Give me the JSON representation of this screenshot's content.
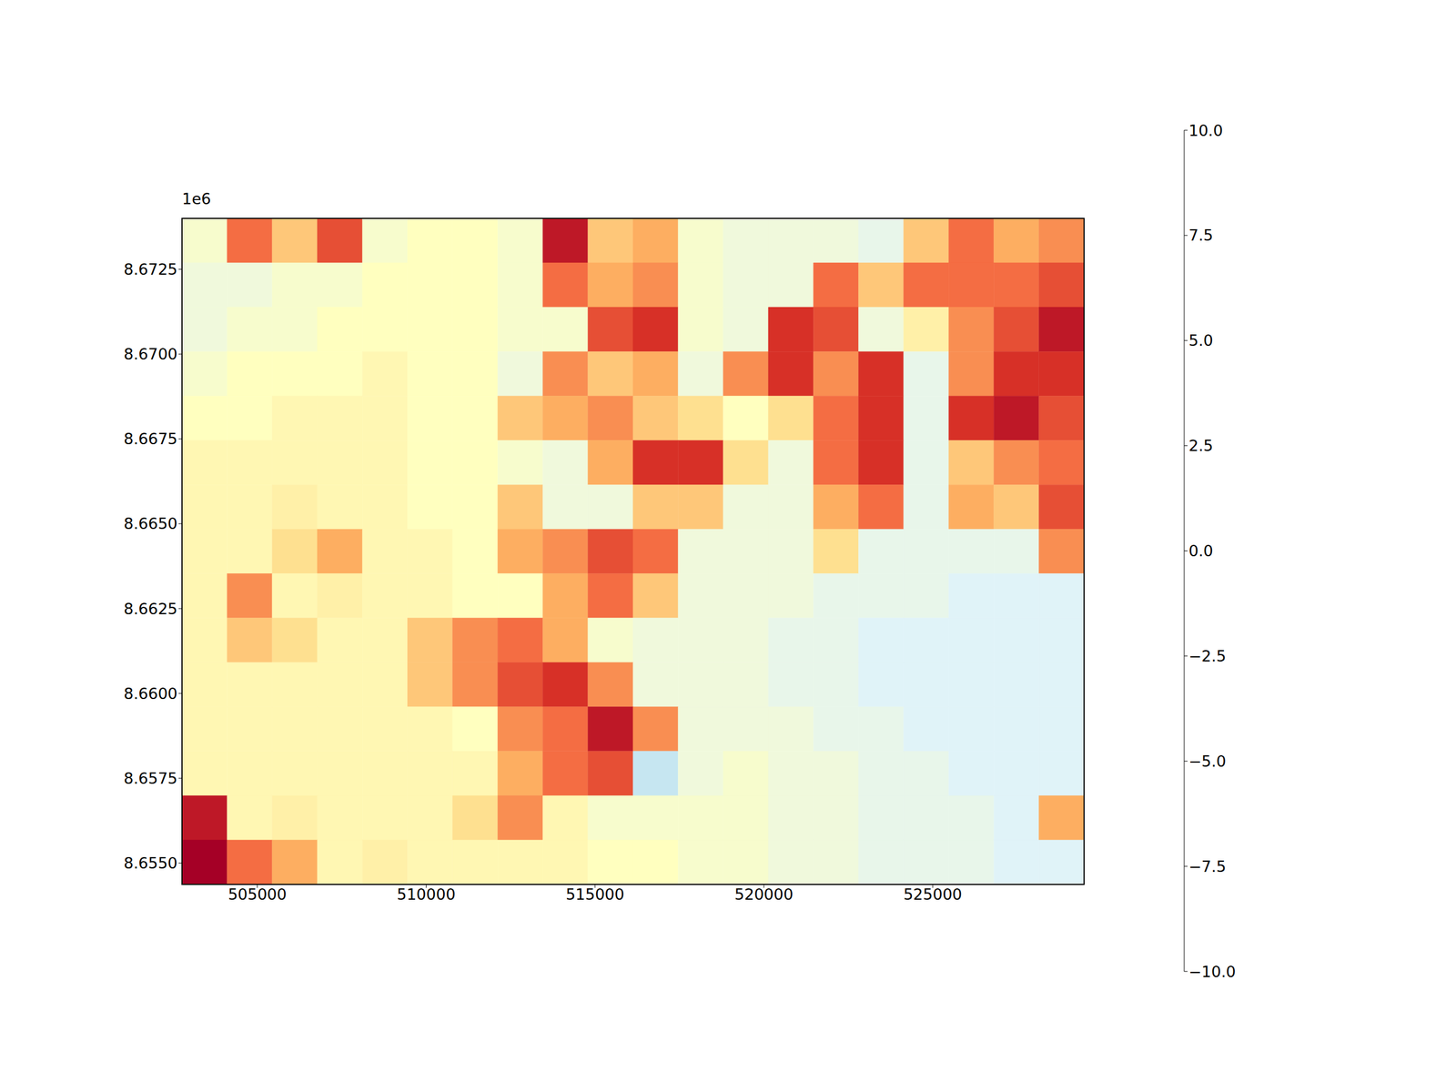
{
  "chart_data": {
    "type": "heatmap",
    "x_edges": [
      502770,
      504106,
      505441,
      506777,
      508112,
      509448,
      510783,
      512119,
      513454,
      514790,
      516125,
      517461,
      518796,
      520132,
      521467,
      522803,
      524138,
      525474,
      526809,
      528145,
      529480
    ],
    "y_edges": [
      8674000,
      8672691,
      8671383,
      8670074,
      8668765,
      8667457,
      8666148,
      8664839,
      8663531,
      8662222,
      8660913,
      8659605,
      8658296,
      8656987,
      8655679,
      8654370
    ],
    "values": [
      [
        0.5,
        -6,
        -3,
        -7,
        0.5,
        0,
        0,
        0.5,
        -9,
        -3,
        -4,
        0.5,
        1,
        1,
        1,
        1.5,
        -3,
        -6,
        -4,
        -5
      ],
      [
        1,
        1,
        0.5,
        0.5,
        0,
        0,
        0,
        0.5,
        -6,
        -4,
        -5,
        0.5,
        1,
        1,
        -6,
        -3,
        -6,
        -6,
        -6,
        -7
      ],
      [
        1,
        0.5,
        0.5,
        0,
        0,
        0,
        0,
        0.5,
        0.5,
        -7,
        -8,
        0.5,
        1,
        -8,
        -7,
        1,
        -1,
        -5,
        -7,
        -9
      ],
      [
        0.5,
        0,
        0,
        0,
        -0.5,
        0,
        0,
        1,
        -5,
        -3,
        -4,
        1,
        -5,
        -8,
        -5,
        -8,
        1.5,
        -5,
        -8,
        -8
      ],
      [
        0,
        0,
        -0.5,
        -0.5,
        -0.5,
        0,
        0,
        -3,
        -4,
        -5,
        -3,
        -2,
        0,
        -2,
        -6,
        -8,
        1.5,
        -8,
        -9,
        -7
      ],
      [
        -0.5,
        -0.5,
        -0.5,
        -0.5,
        -0.5,
        0,
        0,
        0.5,
        1,
        -4,
        -8,
        -8,
        -2,
        1,
        -6,
        -8,
        1.5,
        -3,
        -5,
        -6
      ],
      [
        -0.5,
        -0.5,
        -1,
        -0.5,
        -0.5,
        0,
        0,
        -3,
        1,
        1,
        -3,
        -3,
        1,
        1,
        -4,
        -6,
        1.5,
        -4,
        -3,
        -7
      ],
      [
        -0.5,
        -0.5,
        -2,
        -4,
        -0.5,
        -0.5,
        0,
        -4,
        -5,
        -7,
        -6,
        1,
        1,
        1,
        -2,
        1.5,
        1.5,
        1.5,
        1.5,
        -5
      ],
      [
        -0.5,
        -5,
        -0.5,
        -1,
        -0.5,
        -0.5,
        0,
        0,
        -4,
        -6,
        -3,
        1,
        1,
        1,
        1.5,
        1.5,
        1.5,
        2,
        2,
        2
      ],
      [
        -0.5,
        -3,
        -2,
        -0.5,
        -0.5,
        -3,
        -5,
        -6,
        -4,
        0.5,
        1,
        1,
        1,
        1.5,
        1.5,
        2,
        2,
        2,
        2,
        2
      ],
      [
        -0.5,
        -0.5,
        -0.5,
        -0.5,
        -0.5,
        -3,
        -5,
        -7,
        -8,
        -5,
        1,
        1,
        1,
        1.5,
        1.5,
        2,
        2,
        2,
        2,
        2
      ],
      [
        -0.5,
        -0.5,
        -0.5,
        -0.5,
        -0.5,
        -0.5,
        0,
        -5,
        -6,
        -9,
        -5,
        1,
        1,
        1,
        1.5,
        1.5,
        2,
        2,
        2,
        2
      ],
      [
        -0.5,
        -0.5,
        -0.5,
        -0.5,
        -0.5,
        -0.5,
        -0.5,
        -4,
        -6,
        -7,
        3,
        1,
        0.5,
        1,
        1,
        1.5,
        1.5,
        2,
        2,
        2
      ],
      [
        -9,
        -0.5,
        -1,
        -0.5,
        -0.5,
        -0.5,
        -2,
        -5,
        -0.5,
        0.5,
        0.5,
        0.5,
        0.5,
        1,
        1,
        1.5,
        1.5,
        1.5,
        2,
        -4
      ],
      [
        -10,
        -6,
        -4,
        -0.5,
        -1,
        -0.5,
        -0.5,
        -0.5,
        -0.5,
        0,
        0,
        0.5,
        0.5,
        1,
        1,
        1.5,
        1.5,
        1.5,
        2,
        2
      ]
    ],
    "xlim": [
      502770,
      529480
    ],
    "ylim": [
      8654370,
      8674000
    ],
    "xticks": [
      505000,
      510000,
      515000,
      520000,
      525000
    ],
    "yticks": [
      {
        "value": 8655000,
        "label": "8.6550"
      },
      {
        "value": 8657500,
        "label": "8.6575"
      },
      {
        "value": 8660000,
        "label": "8.6600"
      },
      {
        "value": 8662500,
        "label": "8.6625"
      },
      {
        "value": 8665000,
        "label": "8.6650"
      },
      {
        "value": 8667500,
        "label": "8.6675"
      },
      {
        "value": 8670000,
        "label": "8.6700"
      },
      {
        "value": 8672500,
        "label": "8.6725"
      }
    ],
    "y_offset": "1e6",
    "colorbar": {
      "range": [
        -10,
        10
      ],
      "ticks": [
        {
          "value": -10,
          "label": "−10.0"
        },
        {
          "value": -7.5,
          "label": "−7.5"
        },
        {
          "value": -5,
          "label": "−5.0"
        },
        {
          "value": -2.5,
          "label": "−2.5"
        },
        {
          "value": 0,
          "label": "0.0"
        },
        {
          "value": 2.5,
          "label": "2.5"
        },
        {
          "value": 5,
          "label": "5.0"
        },
        {
          "value": 7.5,
          "label": "7.5"
        },
        {
          "value": 10,
          "label": "10.0"
        }
      ]
    }
  }
}
